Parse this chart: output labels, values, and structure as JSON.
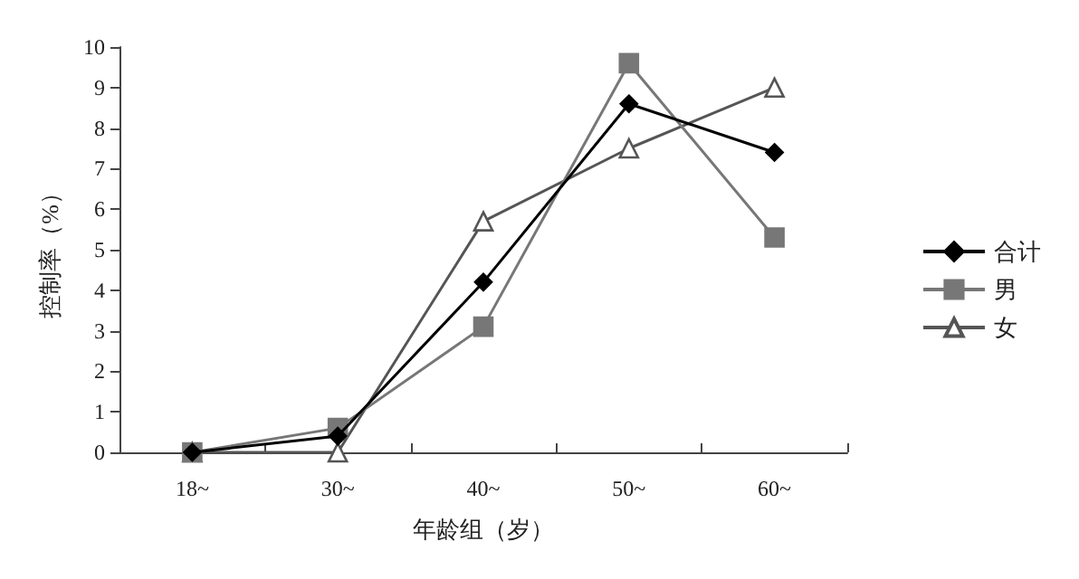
{
  "chart_data": {
    "type": "line",
    "xlabel": "年龄组（岁）",
    "ylabel": "控制率（%）",
    "categories": [
      "18~",
      "30~",
      "40~",
      "50~",
      "60~"
    ],
    "series": [
      {
        "name": "合计",
        "color": "#000000",
        "marker": "diamond",
        "values": [
          0,
          0.4,
          4.2,
          8.6,
          7.4
        ]
      },
      {
        "name": "男",
        "color": "#777777",
        "marker": "square",
        "values": [
          0,
          0.6,
          3.1,
          9.6,
          5.3
        ]
      },
      {
        "name": "女",
        "color": "#555555",
        "marker": "triangle",
        "values": [
          0,
          0,
          5.7,
          7.5,
          9.0
        ]
      }
    ],
    "ylim": [
      0,
      10
    ],
    "yticks": [
      0,
      1,
      2,
      3,
      4,
      5,
      6,
      7,
      8,
      9,
      10
    ],
    "grid": false,
    "legend": "right"
  }
}
